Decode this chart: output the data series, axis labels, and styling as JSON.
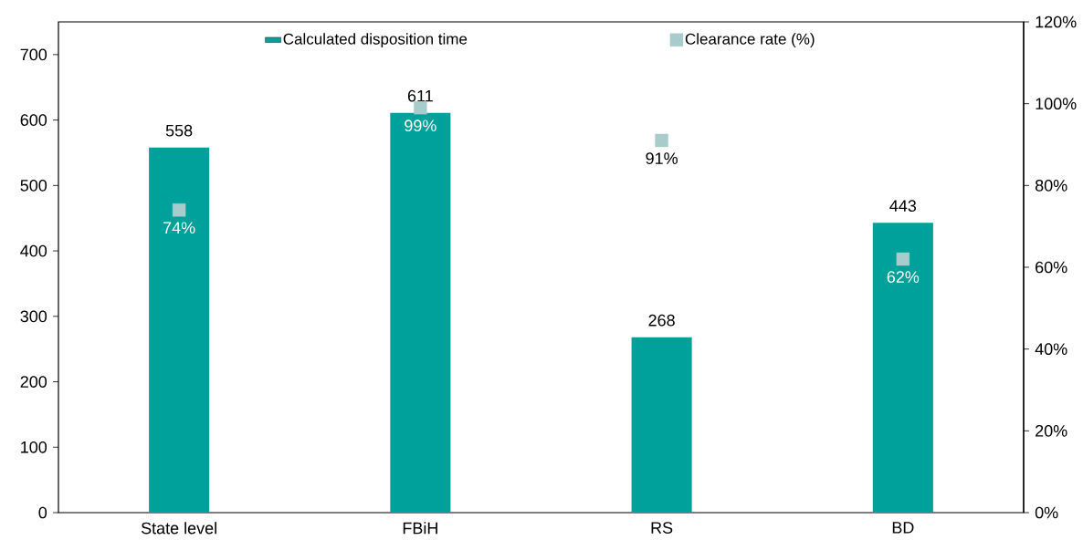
{
  "chart_data": {
    "type": "bar",
    "categories": [
      "State level",
      "FBiH",
      "RS",
      "BD"
    ],
    "series": [
      {
        "name": "Calculated disposition time",
        "color": "#00a19a",
        "values": [
          558,
          611,
          268,
          443
        ]
      },
      {
        "name": "Clearance rate (%)",
        "type": "scatter",
        "axis": "y2",
        "color": "#a8cccc",
        "values": [
          74,
          99,
          91,
          62
        ],
        "value_labels": [
          "74%",
          "99%",
          "91%",
          "62%"
        ]
      }
    ],
    "ylim": [
      0,
      750
    ],
    "yticks": [
      0,
      100,
      200,
      300,
      400,
      500,
      600,
      700
    ],
    "y2lim": [
      0,
      120
    ],
    "y2ticks": [
      {
        "value": 0,
        "label": "0%"
      },
      {
        "value": 20,
        "label": "20%"
      },
      {
        "value": 40,
        "label": "40%"
      },
      {
        "value": 60,
        "label": "60%"
      },
      {
        "value": 80,
        "label": "80%"
      },
      {
        "value": 100,
        "label": "100%"
      },
      {
        "value": 120,
        "label": "120%"
      }
    ],
    "data_labels": true,
    "legend": "top",
    "marker": "square",
    "grid": false
  }
}
